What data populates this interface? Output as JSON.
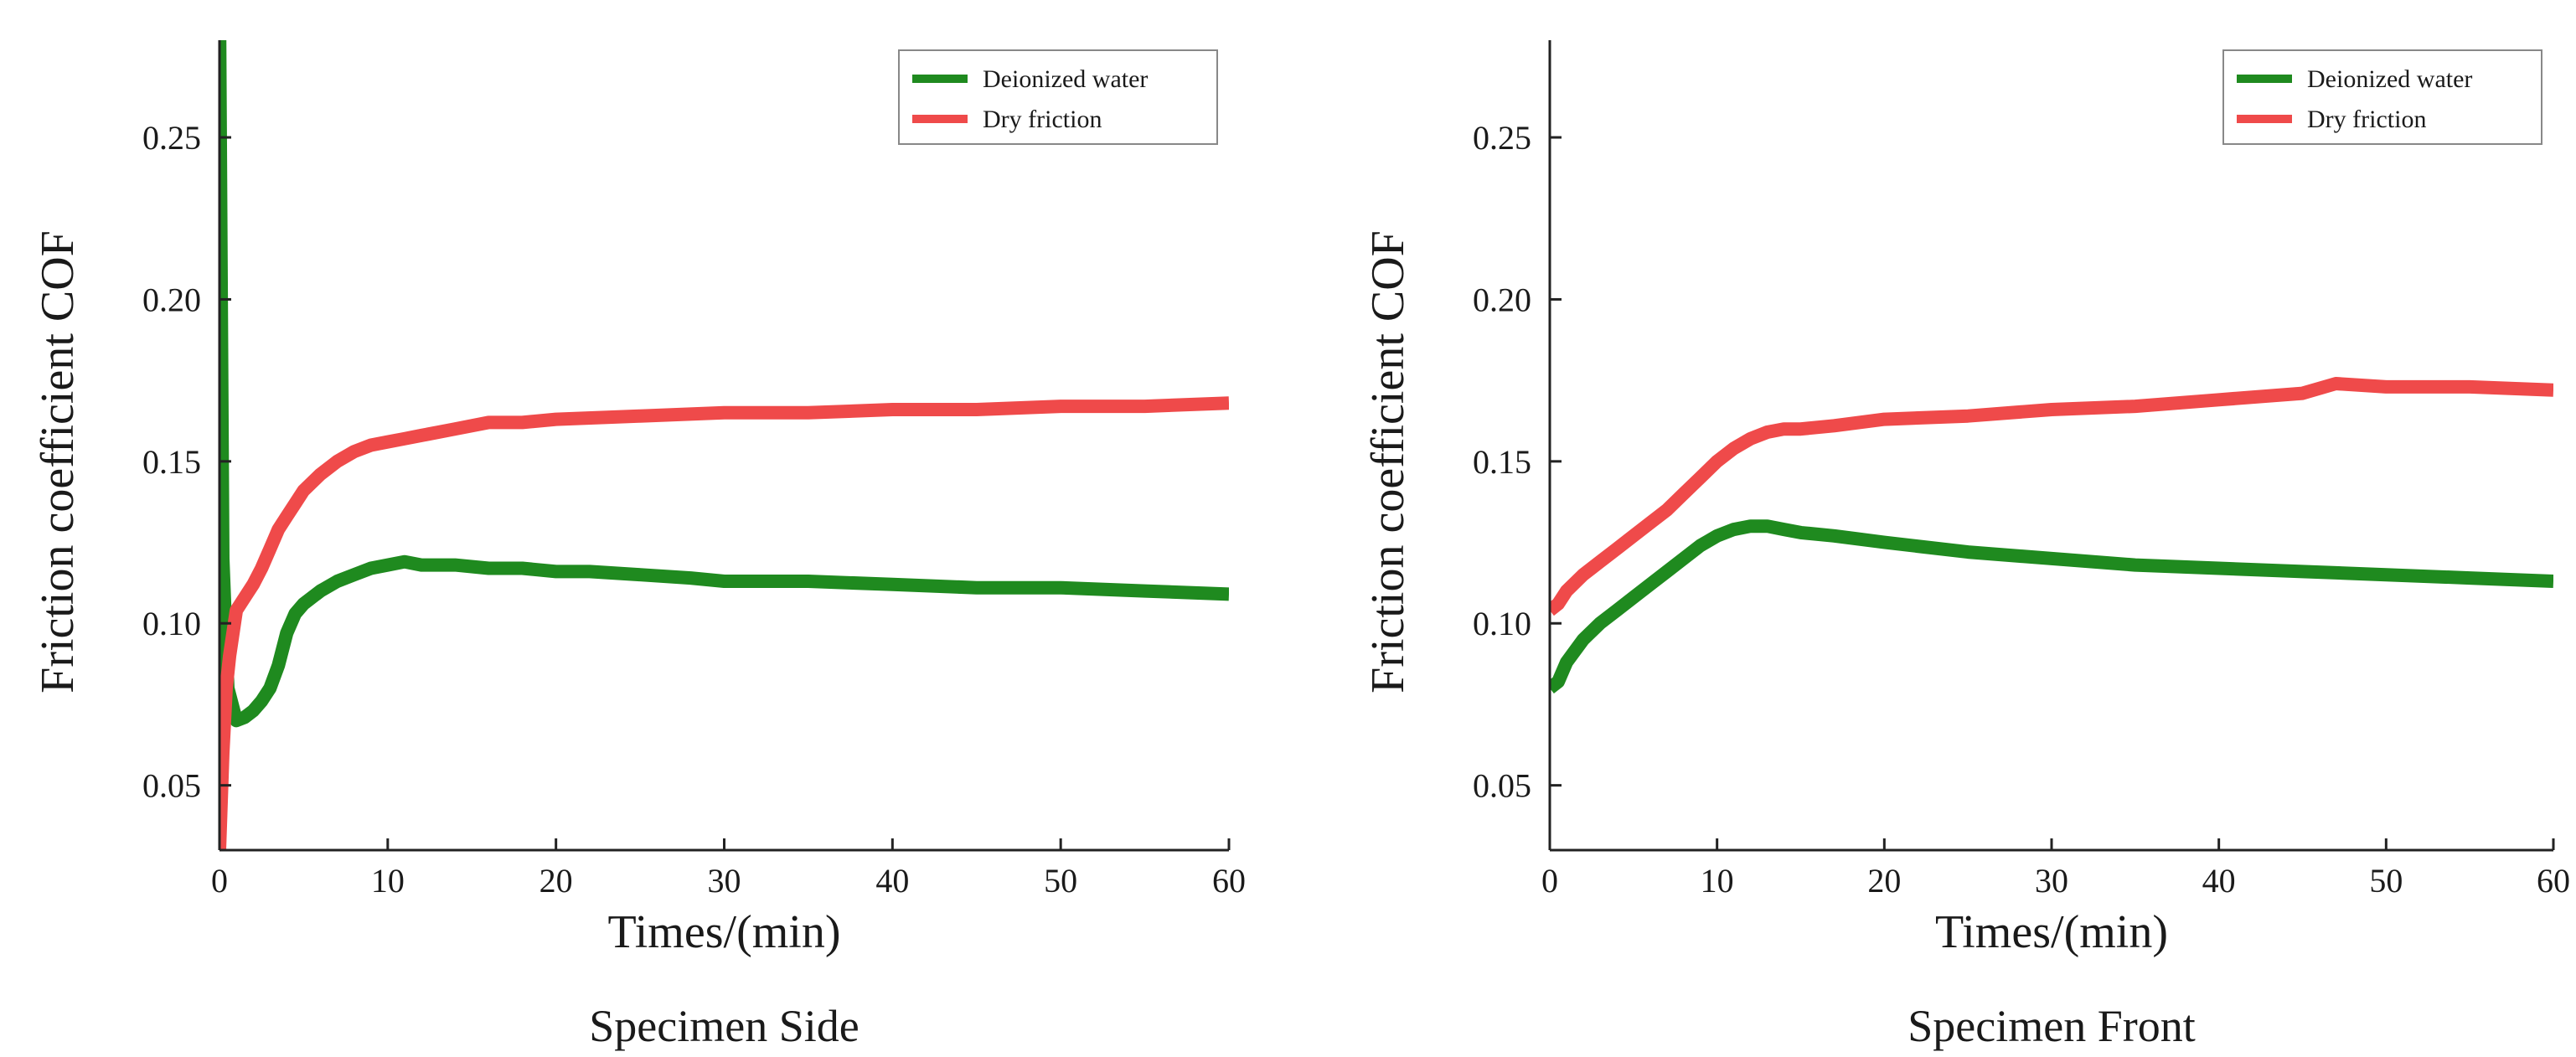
{
  "colors": {
    "deionized": "#1f8a1f",
    "dry": "#ef4a4a",
    "axis": "#222222"
  },
  "chart_data": [
    {
      "type": "line",
      "caption": "Specimen Side",
      "xlabel": "Times/(min)",
      "ylabel": "Friction coefficient COF",
      "xlim": [
        0,
        60
      ],
      "ylim": [
        0.03,
        0.28
      ],
      "xticks": [
        0,
        10,
        20,
        30,
        40,
        50,
        60
      ],
      "yticks": [
        0.05,
        0.1,
        0.15,
        0.2,
        0.25
      ],
      "legend": {
        "position": "top-right",
        "entries": [
          "Deionized water",
          "Dry friction"
        ]
      },
      "series": [
        {
          "name": "Deionized water",
          "color": "#1f8a1f",
          "x": [
            0,
            0.2,
            0.5,
            1,
            1.5,
            2,
            2.5,
            3,
            3.5,
            4,
            4.5,
            5,
            6,
            7,
            8,
            9,
            10,
            11,
            12,
            14,
            16,
            18,
            20,
            22,
            25,
            28,
            30,
            35,
            40,
            45,
            50,
            55,
            60
          ],
          "y": [
            0.29,
            0.12,
            0.08,
            0.07,
            0.071,
            0.073,
            0.076,
            0.08,
            0.087,
            0.097,
            0.103,
            0.106,
            0.11,
            0.113,
            0.115,
            0.117,
            0.118,
            0.119,
            0.118,
            0.118,
            0.117,
            0.117,
            0.116,
            0.116,
            0.115,
            0.114,
            0.113,
            0.113,
            0.112,
            0.111,
            0.111,
            0.11,
            0.109
          ]
        },
        {
          "name": "Dry friction",
          "color": "#ef4a4a",
          "x": [
            0,
            0.2,
            0.4,
            0.6,
            1,
            1.5,
            2,
            2.5,
            3,
            3.5,
            4,
            4.5,
            5,
            6,
            7,
            8,
            9,
            10,
            11,
            12,
            14,
            16,
            18,
            20,
            25,
            30,
            35,
            40,
            45,
            50,
            55,
            60
          ],
          "y": [
            0.03,
            0.06,
            0.08,
            0.09,
            0.104,
            0.108,
            0.112,
            0.117,
            0.123,
            0.129,
            0.133,
            0.137,
            0.141,
            0.146,
            0.15,
            0.153,
            0.155,
            0.156,
            0.157,
            0.158,
            0.16,
            0.162,
            0.162,
            0.163,
            0.164,
            0.165,
            0.165,
            0.166,
            0.166,
            0.167,
            0.167,
            0.168
          ]
        }
      ]
    },
    {
      "type": "line",
      "caption": "Specimen Front",
      "xlabel": "Times/(min)",
      "ylabel": "Friction coefficient COF",
      "xlim": [
        0,
        60
      ],
      "ylim": [
        0.03,
        0.28
      ],
      "xticks": [
        0,
        10,
        20,
        30,
        40,
        50,
        60
      ],
      "yticks": [
        0.05,
        0.1,
        0.15,
        0.2,
        0.25
      ],
      "legend": {
        "position": "top-right",
        "entries": [
          "Deionized water",
          "Dry friction"
        ]
      },
      "series": [
        {
          "name": "Deionized water",
          "color": "#1f8a1f",
          "x": [
            0,
            0.5,
            1,
            2,
            3,
            4,
            5,
            6,
            7,
            8,
            9,
            10,
            11,
            12,
            13,
            14,
            15,
            17,
            20,
            25,
            30,
            35,
            40,
            45,
            50,
            55,
            60
          ],
          "y": [
            0.08,
            0.082,
            0.088,
            0.095,
            0.1,
            0.104,
            0.108,
            0.112,
            0.116,
            0.12,
            0.124,
            0.127,
            0.129,
            0.13,
            0.13,
            0.129,
            0.128,
            0.127,
            0.125,
            0.122,
            0.12,
            0.118,
            0.117,
            0.116,
            0.115,
            0.114,
            0.113
          ]
        },
        {
          "name": "Dry friction",
          "color": "#ef4a4a",
          "x": [
            0,
            0.5,
            1,
            2,
            3,
            4,
            5,
            6,
            7,
            8,
            9,
            10,
            11,
            12,
            13,
            14,
            15,
            17,
            20,
            25,
            30,
            35,
            40,
            45,
            47,
            50,
            55,
            60
          ],
          "y": [
            0.104,
            0.106,
            0.11,
            0.115,
            0.119,
            0.123,
            0.127,
            0.131,
            0.135,
            0.14,
            0.145,
            0.15,
            0.154,
            0.157,
            0.159,
            0.16,
            0.16,
            0.161,
            0.163,
            0.164,
            0.166,
            0.167,
            0.169,
            0.171,
            0.174,
            0.173,
            0.173,
            0.172
          ]
        }
      ]
    }
  ]
}
